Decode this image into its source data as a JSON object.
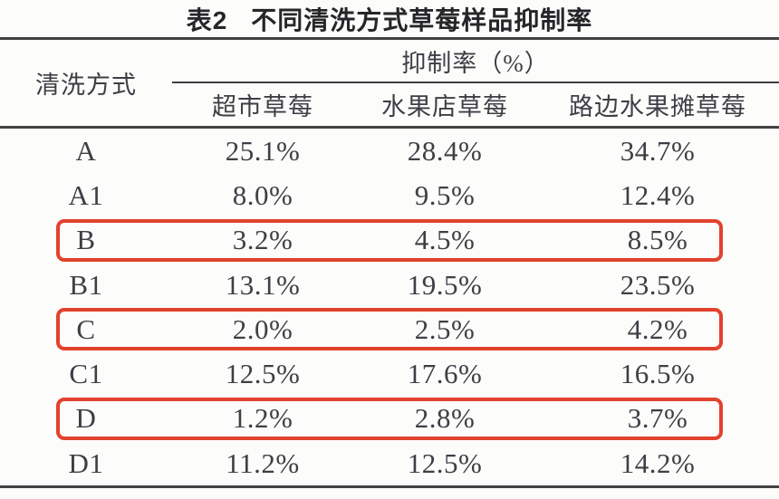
{
  "table": {
    "title_prefix": "表2",
    "title_text": "不同清洗方式草莓样品抑制率",
    "row_header": "清洗方式",
    "col_group_header": "抑制率（%）",
    "columns": [
      "超市草莓",
      "水果店草莓",
      "路边水果摊草莓"
    ],
    "rows": [
      {
        "label": "A",
        "values": [
          "25.1%",
          "28.4%",
          "34.7%"
        ],
        "highlighted": false
      },
      {
        "label": "A1",
        "values": [
          "8.0%",
          "9.5%",
          "12.4%"
        ],
        "highlighted": false
      },
      {
        "label": "B",
        "values": [
          "3.2%",
          "4.5%",
          "8.5%"
        ],
        "highlighted": true
      },
      {
        "label": "B1",
        "values": [
          "13.1%",
          "19.5%",
          "23.5%"
        ],
        "highlighted": false
      },
      {
        "label": "C",
        "values": [
          "2.0%",
          "2.5%",
          "4.2%"
        ],
        "highlighted": true
      },
      {
        "label": "C1",
        "values": [
          "12.5%",
          "17.6%",
          "16.5%"
        ],
        "highlighted": false
      },
      {
        "label": "D",
        "values": [
          "1.2%",
          "2.8%",
          "3.7%"
        ],
        "highlighted": true
      },
      {
        "label": "D1",
        "values": [
          "11.2%",
          "12.5%",
          "14.2%"
        ],
        "highlighted": false
      }
    ],
    "colors": {
      "highlight": "#e2422d",
      "text": "#3e3e45",
      "rule": "#414141",
      "background": "#fcfcfb"
    }
  }
}
